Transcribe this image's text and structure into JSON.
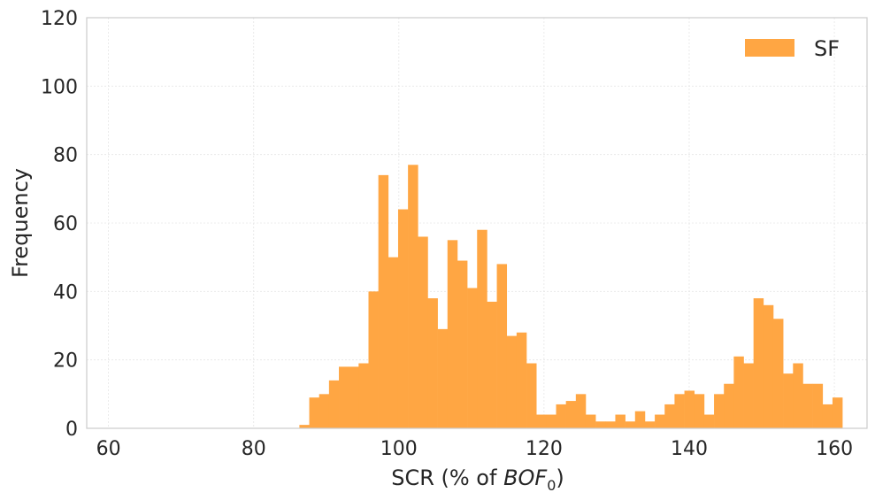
{
  "chart_data": {
    "type": "histogram",
    "ylabel": "Frequency",
    "xlabel_text": "SCR (% of ",
    "xlabel_math_main": "BOF",
    "xlabel_math_sub": "0",
    "xlabel_close": ")",
    "xlim": [
      57,
      164.5
    ],
    "ylim": [
      0,
      120
    ],
    "x_ticks": [
      60,
      80,
      100,
      120,
      140,
      160
    ],
    "y_ticks": [
      0,
      20,
      40,
      60,
      80,
      100,
      120
    ],
    "grid": true,
    "legend_position": "upper-right",
    "bar_color": "#FFA643",
    "bin_start": 86.3,
    "bin_width": 1.36,
    "series": [
      {
        "name": "SF",
        "values": [
          1,
          9,
          10,
          14,
          18,
          18,
          19,
          40,
          74,
          50,
          64,
          77,
          56,
          38,
          29,
          55,
          49,
          41,
          58,
          37,
          48,
          27,
          28,
          19,
          4,
          4,
          7,
          8,
          10,
          4,
          2,
          2,
          4,
          2,
          5,
          2,
          4,
          7,
          10,
          11,
          10,
          4,
          10,
          13,
          21,
          19,
          38,
          36,
          32,
          16,
          19,
          13,
          13,
          7,
          9
        ]
      }
    ]
  }
}
